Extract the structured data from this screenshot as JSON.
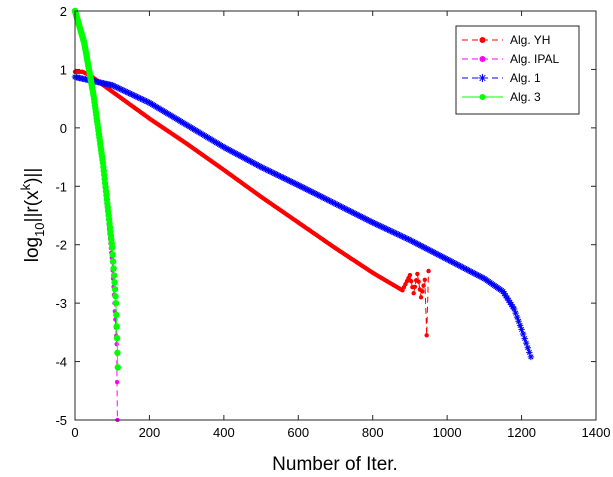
{
  "chart_data": {
    "type": "line",
    "xlabel": "Number of Iter.",
    "ylabel_parts": {
      "main": "log",
      "sub": "10",
      "rest1": "||r(x",
      "sup": "k",
      "rest2": ")||"
    },
    "xlim": [
      0,
      1400
    ],
    "ylim": [
      -5,
      2
    ],
    "xticks": [
      0,
      200,
      400,
      600,
      800,
      1000,
      1200,
      1400
    ],
    "yticks": [
      -5,
      -4,
      -3,
      -2,
      -1,
      0,
      1,
      2
    ],
    "legend_position": "top-right",
    "series": [
      {
        "name": "Alg. YH",
        "color": "#ff0000",
        "marker": "dot",
        "linestyle": "dashed",
        "points": [
          [
            0,
            0.96
          ],
          [
            20,
            0.96
          ],
          [
            40,
            0.9
          ],
          [
            100,
            0.62
          ],
          [
            200,
            0.16
          ],
          [
            300,
            -0.27
          ],
          [
            400,
            -0.72
          ],
          [
            500,
            -1.18
          ],
          [
            600,
            -1.62
          ],
          [
            700,
            -2.06
          ],
          [
            800,
            -2.48
          ],
          [
            880,
            -2.78
          ],
          [
            900,
            -2.52
          ],
          [
            910,
            -2.83
          ],
          [
            920,
            -2.5
          ],
          [
            930,
            -2.9
          ],
          [
            940,
            -2.6
          ],
          [
            945,
            -3.55
          ],
          [
            950,
            -2.45
          ]
        ]
      },
      {
        "name": "Alg. IPAL",
        "color": "#ff00ff",
        "marker": "dot",
        "linestyle": "dashed",
        "points": [
          [
            0,
            1.95
          ],
          [
            25,
            1.45
          ],
          [
            50,
            0.6
          ],
          [
            75,
            -0.6
          ],
          [
            100,
            -2.3
          ],
          [
            112,
            -3.7
          ],
          [
            114,
            -5.0
          ]
        ]
      },
      {
        "name": "Alg. 1",
        "color": "#0000ff",
        "marker": "star",
        "linestyle": "dashed",
        "points": [
          [
            0,
            0.87
          ],
          [
            100,
            0.73
          ],
          [
            200,
            0.43
          ],
          [
            300,
            0.05
          ],
          [
            400,
            -0.33
          ],
          [
            500,
            -0.67
          ],
          [
            600,
            -0.98
          ],
          [
            700,
            -1.3
          ],
          [
            800,
            -1.62
          ],
          [
            900,
            -1.92
          ],
          [
            1000,
            -2.25
          ],
          [
            1100,
            -2.58
          ],
          [
            1150,
            -2.8
          ],
          [
            1180,
            -3.1
          ],
          [
            1200,
            -3.45
          ],
          [
            1225,
            -3.92
          ]
        ]
      },
      {
        "name": "Alg. 3",
        "color": "#00ff00",
        "marker": "dot",
        "linestyle": "solid",
        "points": [
          [
            0,
            2.0
          ],
          [
            25,
            1.45
          ],
          [
            50,
            0.55
          ],
          [
            75,
            -0.6
          ],
          [
            100,
            -2.05
          ],
          [
            110,
            -3.0
          ],
          [
            113,
            -3.6
          ],
          [
            115,
            -4.1
          ]
        ]
      }
    ]
  }
}
